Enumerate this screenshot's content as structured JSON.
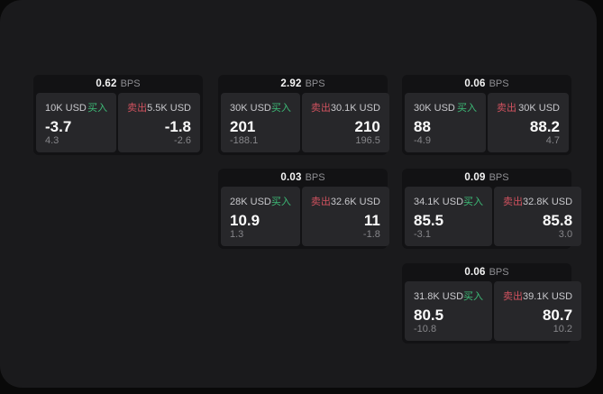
{
  "colors": {
    "panel_bg": "#1a1a1c",
    "card_bg": "#121214",
    "subcard_bg": "#27272a",
    "buy_color": "#3dbb77",
    "sell_color": "#d0525f"
  },
  "labels": {
    "bps": "BPS",
    "buy": "买入",
    "sell": "卖出"
  },
  "cards": [
    {
      "bps": "0.62",
      "row": 0,
      "col": 0,
      "buy": {
        "amount": "10K USD",
        "value": "-3.7",
        "delta": "4.3"
      },
      "sell": {
        "amount": "5.5K USD",
        "value": "-1.8",
        "delta": "-2.6"
      }
    },
    {
      "bps": "2.92",
      "row": 0,
      "col": 1,
      "buy": {
        "amount": "30K USD",
        "value": "201",
        "delta": "-188.1"
      },
      "sell": {
        "amount": "30.1K USD",
        "value": "210",
        "delta": "196.5"
      }
    },
    {
      "bps": "0.06",
      "row": 0,
      "col": 2,
      "buy": {
        "amount": "30K USD",
        "value": "88",
        "delta": "-4.9"
      },
      "sell": {
        "amount": "30K USD",
        "value": "88.2",
        "delta": "4.7"
      }
    },
    {
      "bps": "0.03",
      "row": 1,
      "col": 1,
      "buy": {
        "amount": "28K USD",
        "value": "10.9",
        "delta": "1.3"
      },
      "sell": {
        "amount": "32.6K USD",
        "value": "11",
        "delta": "-1.8"
      }
    },
    {
      "bps": "0.09",
      "row": 1,
      "col": 2,
      "buy": {
        "amount": "34.1K USD",
        "value": "85.5",
        "delta": "-3.1"
      },
      "sell": {
        "amount": "32.8K USD",
        "value": "85.8",
        "delta": "3.0"
      }
    },
    {
      "bps": "0.06",
      "row": 2,
      "col": 2,
      "buy": {
        "amount": "31.8K USD",
        "value": "80.5",
        "delta": "-10.8"
      },
      "sell": {
        "amount": "39.1K USD",
        "value": "80.7",
        "delta": "10.2"
      }
    }
  ]
}
